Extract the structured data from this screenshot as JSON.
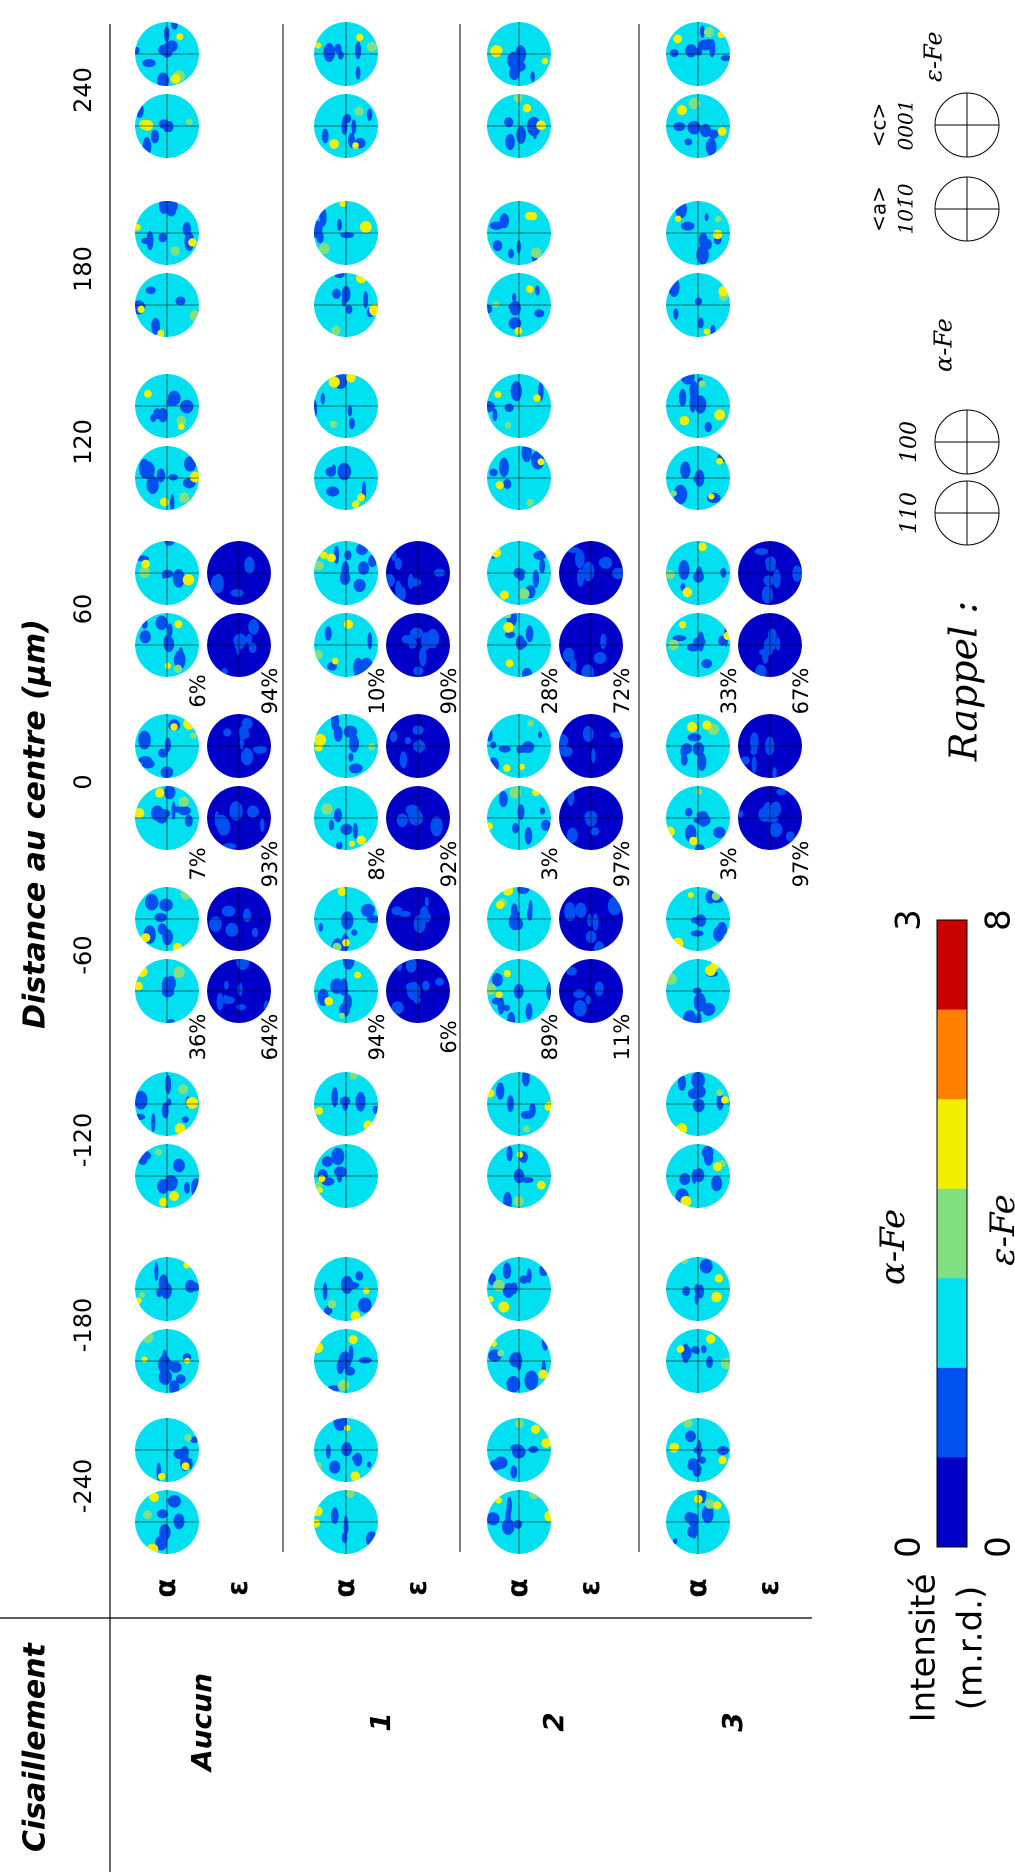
{
  "header": {
    "shear_label": "Cisaillement",
    "distance_label": "Distance au centre (µm)"
  },
  "columns": [
    "-240",
    "-180",
    "-120",
    "-60",
    "0",
    "60",
    "120",
    "180",
    "240"
  ],
  "rows": [
    {
      "label": "Aucun",
      "phases": [
        "α",
        "ε"
      ],
      "fractions": [
        {
          "column": "-60",
          "alpha": "36%",
          "epsilon": "64%"
        },
        {
          "column": "0",
          "alpha": "7%",
          "epsilon": "93%"
        },
        {
          "column": "60",
          "alpha": "6%",
          "epsilon": "94%"
        }
      ]
    },
    {
      "label": "1",
      "phases": [
        "α",
        "ε"
      ],
      "fractions": [
        {
          "column": "-60",
          "alpha": "94%",
          "epsilon": "6%"
        },
        {
          "column": "0",
          "alpha": "8%",
          "epsilon": "92%"
        },
        {
          "column": "60",
          "alpha": "10%",
          "epsilon": "90%"
        }
      ]
    },
    {
      "label": "2",
      "phases": [
        "α",
        "ε"
      ],
      "fractions": [
        {
          "column": "-60",
          "alpha": "89%",
          "epsilon": "11%"
        },
        {
          "column": "0",
          "alpha": "3%",
          "epsilon": "97%"
        },
        {
          "column": "60",
          "alpha": "28%",
          "epsilon": "72%"
        }
      ]
    },
    {
      "label": "3",
      "phases": [
        "α",
        "ε"
      ],
      "fractions": [
        {
          "column": "0",
          "alpha": "3%",
          "epsilon": "97%"
        },
        {
          "column": "60",
          "alpha": "33%",
          "epsilon": "67%"
        }
      ]
    }
  ],
  "colorbar": {
    "title": "Intensité",
    "unit": "(m.r.d.)",
    "alpha_label": "α-Fe",
    "alpha_min": 0,
    "alpha_max": 3,
    "epsilon_label": "ε-Fe",
    "epsilon_min": 0,
    "epsilon_max": 8,
    "colors": [
      "#0000c8",
      "#0050f0",
      "#00e0f0",
      "#80e080",
      "#f0f000",
      "#ff8000",
      "#c80000"
    ]
  },
  "reminder": {
    "title": "Rappel :",
    "alpha": {
      "label": "α-Fe",
      "poles": [
        "110",
        "100"
      ]
    },
    "epsilon": {
      "label": "ε-Fe",
      "poles": [
        {
          "direction": "<a>",
          "plane": "101̄0"
        },
        {
          "direction": "<c>",
          "plane": "0001"
        }
      ]
    }
  }
}
